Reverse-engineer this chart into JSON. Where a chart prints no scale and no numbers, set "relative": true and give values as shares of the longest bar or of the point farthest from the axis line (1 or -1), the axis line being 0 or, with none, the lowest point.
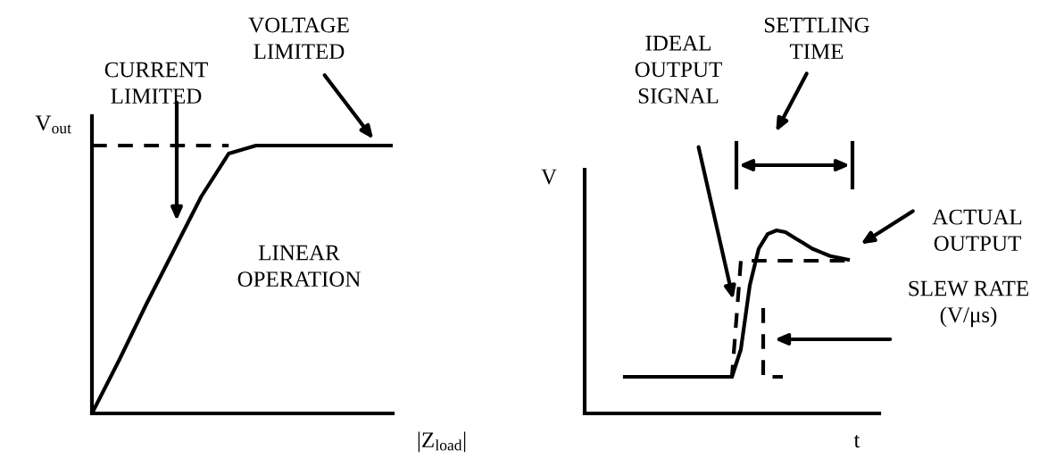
{
  "chart_data": [
    {
      "type": "line",
      "relative": true,
      "xlabel": "|Z$_{load}$|",
      "ylabel": "V$_{out}$",
      "categories": [
        null,
        null,
        null,
        null,
        null,
        null,
        null,
        null,
        null,
        null,
        null,
        null
      ],
      "series": [
        {
          "color": "#000000",
          "line_style": "solid",
          "values": [
            0,
            0.2,
            0.41,
            0.61,
            0.81,
            0.97,
            1,
            1,
            1,
            1,
            1,
            1
          ]
        },
        {
          "color": "#000000",
          "line_style": "dashed",
          "values": [
            1,
            1,
            1,
            1,
            1,
            1,
            null,
            null,
            null,
            null,
            null,
            null
          ]
        }
      ],
      "annotations": [
        "CURRENT\nLIMITED",
        "VOLTAGE\nLIMITED",
        "LINEAR\nOPERATION"
      ]
    },
    {
      "type": "line",
      "relative": true,
      "xlabel": "t",
      "ylabel": "V",
      "categories": [
        null,
        null,
        null,
        null,
        null,
        null,
        null,
        null,
        null,
        null,
        null,
        null,
        null,
        null,
        null,
        null,
        null,
        null,
        null,
        null,
        null,
        null,
        null,
        null,
        null,
        null
      ],
      "series": [
        {
          "color": "#000000",
          "line_style": "solid",
          "values": [
            0.2,
            0.2,
            0.2,
            0.2,
            0.2,
            0.2,
            0.2,
            0.2,
            0.2,
            0.2,
            0.2,
            0.2,
            0.2,
            0.35,
            0.7,
            0.9,
            0.98,
            1,
            0.99,
            0.96,
            0.93,
            0.9,
            0.88,
            0.86,
            0.85,
            0.84
          ]
        },
        {
          "color": "#000000",
          "line_style": "dashed",
          "values": [
            0.2,
            0.2,
            0.2,
            0.2,
            0.2,
            0.2,
            0.2,
            0.2,
            0.2,
            0.2,
            0.2,
            0.2,
            0.2,
            0.834,
            0.834,
            0.834,
            0.834,
            0.834,
            0.834,
            0.834,
            0.834,
            0.834,
            0.834,
            0.834,
            0.834,
            0.834
          ]
        }
      ],
      "annotations": [
        "IDEAL\nOUTPUT\nSIGNAL",
        "SETTLING\nTIME",
        "ACTUAL\nOUTPUT",
        "SLEW RATE\n(V/μs)"
      ]
    }
  ]
}
